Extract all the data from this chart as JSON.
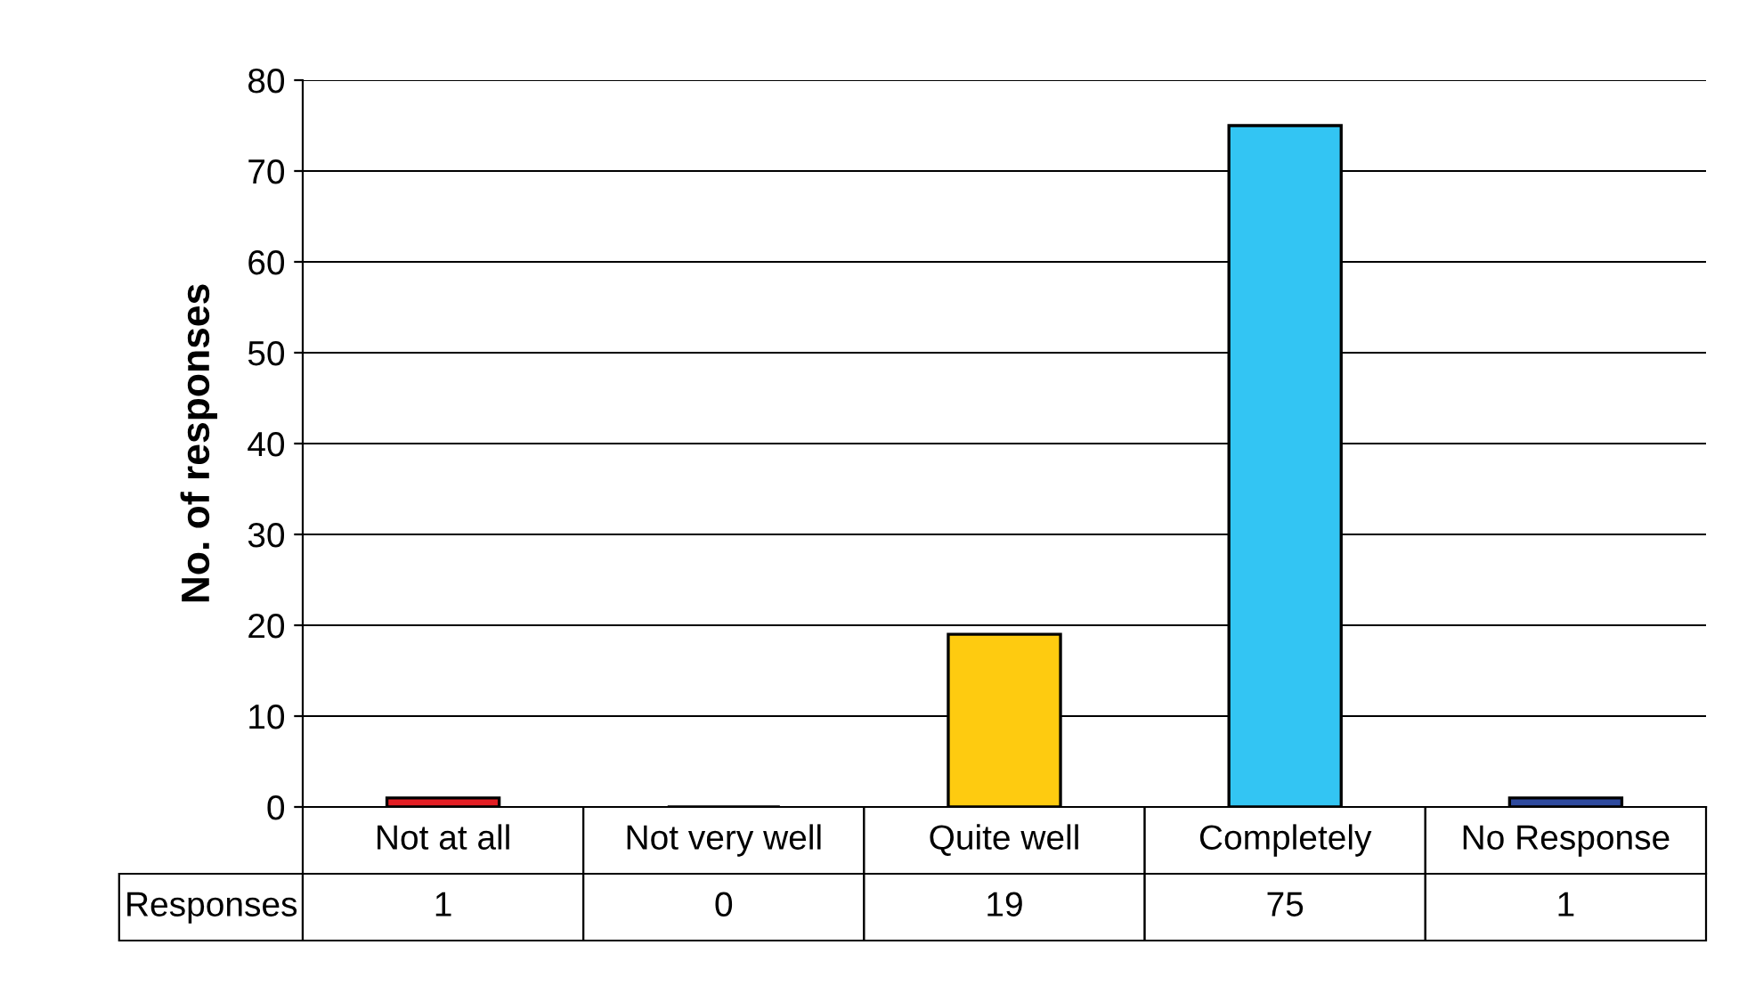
{
  "chart_data": {
    "type": "bar",
    "ylabel": "No. of responses",
    "categories": [
      "Not at all",
      "Not very well",
      "Quite well",
      "Completely",
      "No Response"
    ],
    "series": [
      {
        "name": "Responses",
        "values": [
          1,
          0,
          19,
          75,
          1
        ],
        "colors": [
          "#e31e24",
          null,
          "#fecb10",
          "#33c5f3",
          "#2e4a9e"
        ]
      }
    ],
    "ylim": [
      0,
      80
    ],
    "yticks": [
      0,
      10,
      20,
      30,
      40,
      50,
      60,
      70,
      80
    ],
    "grid": "y",
    "data_labels": true
  }
}
